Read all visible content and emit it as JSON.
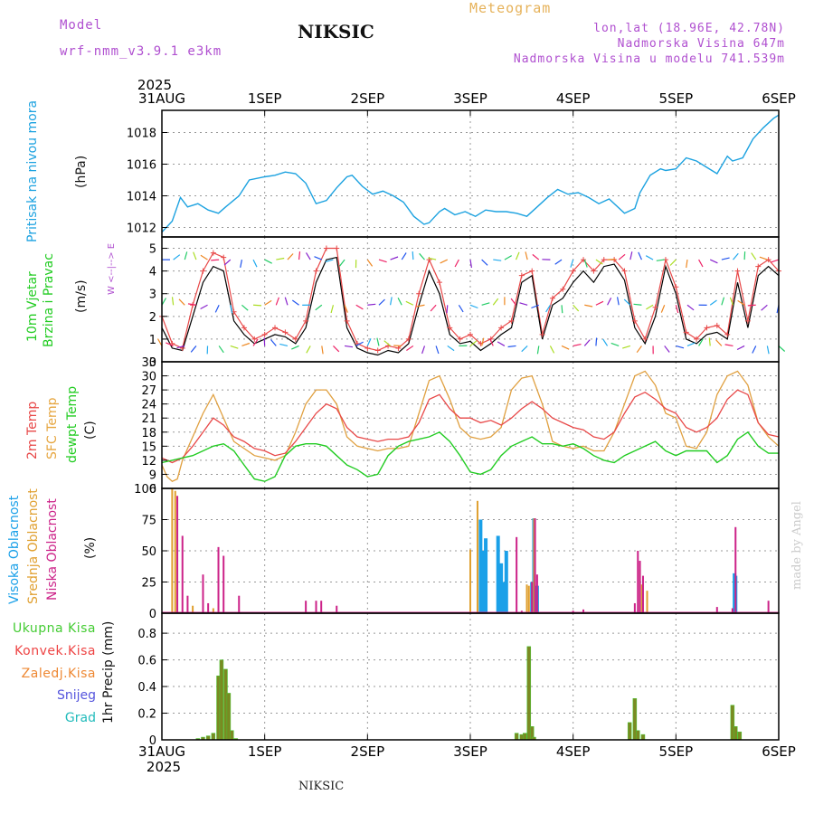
{
  "header": {
    "model_label": "Model",
    "model_value": "wrf-nmm_v3.9.1  e3km",
    "title": "Meteogram",
    "location": "NIKSIC",
    "coords": "lon,lat (18.96E, 42.78N)",
    "altitude": "Nadmorska Visina 647m",
    "model_altitude": "Nadmorska Visina u modelu 741.539m"
  },
  "footer": {
    "location": "NIKSIC",
    "credit": "made by Angel"
  },
  "colors": {
    "pressure": "#1ca2e0",
    "wind": "#22b24c",
    "t2m": "#e84848",
    "tsfc": "#e0a040",
    "dewpt": "#22cc22",
    "cloud_high": "#1aa0e8",
    "cloud_mid": "#e0a030",
    "cloud_low": "#cc2288",
    "precip_total": "#44cc33",
    "precip_conv": "#ee4444",
    "precip_frz": "#ee8833",
    "precip_snow": "#5555dd",
    "precip_hail": "#22bbbb",
    "model_color": "#b050d0"
  },
  "chart_data": [
    {
      "type": "line",
      "title": "Pritisak na nivou mora",
      "ylabel": "(hPa)",
      "x_tick_labels": [
        "31AUG",
        "1SEP",
        "2SEP",
        "3SEP",
        "4SEP",
        "5SEP",
        "6SEP"
      ],
      "year_label": "2025",
      "x_range_days": [
        0,
        6
      ],
      "ylim": [
        1011.4,
        1019.4
      ],
      "yticks": [
        1012,
        1014,
        1016,
        1018
      ],
      "series": [
        {
          "name": "MSLP",
          "x": [
            0,
            0.1,
            0.18,
            0.25,
            0.35,
            0.45,
            0.55,
            0.62,
            0.75,
            0.85,
            1.0,
            1.1,
            1.2,
            1.3,
            1.4,
            1.5,
            1.6,
            1.7,
            1.8,
            1.85,
            1.95,
            2.05,
            2.15,
            2.25,
            2.35,
            2.45,
            2.55,
            2.6,
            2.7,
            2.75,
            2.85,
            2.95,
            3.05,
            3.15,
            3.25,
            3.35,
            3.45,
            3.55,
            3.65,
            3.75,
            3.85,
            3.95,
            4.05,
            4.15,
            4.25,
            4.35,
            4.5,
            4.6,
            4.65,
            4.75,
            4.85,
            4.9,
            5.0,
            5.1,
            5.2,
            5.3,
            5.4,
            5.5,
            5.55,
            5.65,
            5.75,
            5.85,
            5.95,
            6.0
          ],
          "values": [
            1011.7,
            1012.4,
            1013.9,
            1013.3,
            1013.5,
            1013.1,
            1012.9,
            1013.3,
            1014.0,
            1015.0,
            1015.2,
            1015.3,
            1015.5,
            1015.4,
            1014.8,
            1013.5,
            1013.7,
            1014.5,
            1015.2,
            1015.3,
            1014.6,
            1014.1,
            1014.3,
            1014.0,
            1013.6,
            1012.7,
            1012.2,
            1012.3,
            1013.0,
            1013.2,
            1012.8,
            1013.0,
            1012.7,
            1013.1,
            1013.0,
            1013.0,
            1012.9,
            1012.7,
            1013.3,
            1013.9,
            1014.4,
            1014.1,
            1014.2,
            1013.9,
            1013.5,
            1013.8,
            1012.9,
            1013.2,
            1014.2,
            1015.3,
            1015.7,
            1015.6,
            1015.7,
            1016.4,
            1016.2,
            1015.8,
            1015.4,
            1016.5,
            1016.2,
            1016.4,
            1017.6,
            1018.3,
            1018.9,
            1019.1
          ]
        }
      ]
    },
    {
      "type": "line",
      "title": "10m Vjetar",
      "subtitle": "Brzina i Pravac",
      "ylabel": "(m/s)",
      "compass_label": "W <--|--> E",
      "ylim": [
        0,
        5.5
      ],
      "yticks": [
        0,
        1,
        2,
        3,
        4,
        5
      ],
      "series": [
        {
          "name": "mean speed",
          "x": [
            0,
            0.1,
            0.2,
            0.3,
            0.4,
            0.5,
            0.6,
            0.7,
            0.8,
            0.9,
            1.0,
            1.1,
            1.2,
            1.3,
            1.4,
            1.5,
            1.6,
            1.7,
            1.8,
            1.9,
            2.0,
            2.1,
            2.2,
            2.3,
            2.4,
            2.5,
            2.6,
            2.7,
            2.8,
            2.9,
            3.0,
            3.1,
            3.2,
            3.3,
            3.4,
            3.5,
            3.6,
            3.7,
            3.8,
            3.9,
            4.0,
            4.1,
            4.2,
            4.3,
            4.4,
            4.5,
            4.6,
            4.7,
            4.8,
            4.9,
            5.0,
            5.1,
            5.2,
            5.3,
            5.4,
            5.5,
            5.6,
            5.7,
            5.8,
            5.9,
            6.0
          ],
          "values": [
            1.5,
            0.6,
            0.5,
            2.0,
            3.5,
            4.2,
            4.0,
            1.8,
            1.2,
            0.8,
            1.0,
            1.2,
            1.1,
            0.8,
            1.5,
            3.5,
            4.5,
            4.6,
            1.5,
            0.6,
            0.4,
            0.3,
            0.5,
            0.4,
            0.8,
            2.5,
            4.0,
            3.0,
            1.2,
            0.8,
            0.9,
            0.5,
            0.8,
            1.2,
            1.5,
            3.5,
            3.8,
            1.0,
            2.5,
            2.8,
            3.5,
            4.0,
            3.5,
            4.2,
            4.3,
            3.6,
            1.5,
            0.8,
            2.0,
            4.2,
            3.0,
            1.0,
            0.8,
            1.2,
            1.3,
            1.0,
            3.5,
            1.5,
            3.8,
            4.2,
            3.8
          ]
        },
        {
          "name": "gust",
          "x": [
            0,
            0.1,
            0.2,
            0.3,
            0.4,
            0.5,
            0.6,
            0.7,
            0.8,
            0.9,
            1.0,
            1.1,
            1.2,
            1.3,
            1.4,
            1.5,
            1.6,
            1.7,
            1.8,
            1.9,
            2.0,
            2.1,
            2.2,
            2.3,
            2.4,
            2.5,
            2.6,
            2.7,
            2.8,
            2.9,
            3.0,
            3.1,
            3.2,
            3.3,
            3.4,
            3.5,
            3.6,
            3.7,
            3.8,
            3.9,
            4.0,
            4.1,
            4.2,
            4.3,
            4.4,
            4.5,
            4.6,
            4.7,
            4.8,
            4.9,
            5.0,
            5.1,
            5.2,
            5.3,
            5.4,
            5.5,
            5.6,
            5.7,
            5.8,
            5.9,
            6.0
          ],
          "values": [
            2.0,
            0.8,
            0.6,
            2.5,
            4.0,
            4.8,
            4.6,
            2.2,
            1.5,
            1.0,
            1.2,
            1.5,
            1.3,
            1.0,
            1.8,
            4.0,
            5.0,
            5.0,
            1.8,
            0.8,
            0.6,
            0.5,
            0.7,
            0.6,
            1.0,
            3.0,
            4.5,
            3.5,
            1.5,
            1.0,
            1.2,
            0.8,
            1.0,
            1.5,
            1.8,
            3.8,
            4.0,
            1.2,
            2.8,
            3.2,
            4.0,
            4.5,
            4.0,
            4.5,
            4.5,
            4.0,
            1.8,
            1.0,
            2.4,
            4.5,
            3.3,
            1.3,
            1.0,
            1.5,
            1.6,
            1.2,
            4.0,
            1.8,
            4.2,
            4.5,
            4.0
          ]
        }
      ]
    },
    {
      "type": "line",
      "title": "2m Temp",
      "subtitle": [
        "SFC Temp",
        "dewpt Temp"
      ],
      "ylabel": "(C)",
      "ylim": [
        6,
        33
      ],
      "yticks": [
        6,
        9,
        12,
        15,
        18,
        21,
        24,
        27,
        30,
        33
      ],
      "series": [
        {
          "name": "2m Temp",
          "x": [
            0,
            0.1,
            0.2,
            0.3,
            0.4,
            0.5,
            0.6,
            0.7,
            0.8,
            0.9,
            1.0,
            1.1,
            1.2,
            1.3,
            1.4,
            1.5,
            1.6,
            1.7,
            1.8,
            1.9,
            2.0,
            2.1,
            2.2,
            2.3,
            2.4,
            2.5,
            2.6,
            2.7,
            2.8,
            2.9,
            3.0,
            3.1,
            3.2,
            3.3,
            3.4,
            3.5,
            3.6,
            3.7,
            3.8,
            3.9,
            4.0,
            4.1,
            4.2,
            4.3,
            4.4,
            4.5,
            4.6,
            4.7,
            4.8,
            4.9,
            5.0,
            5.1,
            5.2,
            5.3,
            5.4,
            5.5,
            5.6,
            5.7,
            5.8,
            5.9,
            6.0
          ],
          "values": [
            12.5,
            11.5,
            12.5,
            15,
            18,
            21,
            19.5,
            17,
            16,
            14.5,
            14,
            13,
            13.5,
            16,
            19,
            22,
            24,
            23,
            19,
            17,
            16.5,
            16,
            16.5,
            16.5,
            17,
            20,
            25,
            26,
            23,
            21,
            21,
            20,
            20.5,
            19.5,
            21,
            23,
            24.5,
            23,
            21,
            20,
            19,
            18.5,
            17,
            16.5,
            18,
            22,
            25.5,
            26.5,
            25,
            23,
            22,
            19,
            18,
            19,
            21,
            25,
            27,
            26,
            20,
            17.5,
            17
          ]
        },
        {
          "name": "SFC Temp",
          "x": [
            0,
            0.05,
            0.1,
            0.15,
            0.2,
            0.3,
            0.4,
            0.5,
            0.6,
            0.7,
            0.8,
            0.9,
            1.0,
            1.1,
            1.2,
            1.3,
            1.4,
            1.5,
            1.6,
            1.7,
            1.8,
            1.9,
            2.0,
            2.1,
            2.2,
            2.3,
            2.4,
            2.5,
            2.6,
            2.7,
            2.8,
            2.9,
            3.0,
            3.1,
            3.2,
            3.3,
            3.4,
            3.5,
            3.6,
            3.7,
            3.8,
            3.9,
            4.0,
            4.1,
            4.2,
            4.3,
            4.4,
            4.5,
            4.6,
            4.7,
            4.8,
            4.9,
            5.0,
            5.1,
            5.2,
            5.3,
            5.4,
            5.5,
            5.6,
            5.7,
            5.8,
            5.9,
            6.0
          ],
          "values": [
            11,
            8.5,
            7.5,
            8,
            12,
            17,
            22,
            26,
            21,
            16,
            14.5,
            13,
            12.5,
            12,
            13,
            18,
            24,
            27,
            27,
            24,
            17,
            15,
            14.5,
            14,
            14.5,
            14.5,
            15,
            22,
            29,
            30,
            25,
            19,
            17,
            16.5,
            17,
            19,
            27,
            29.5,
            30,
            24,
            16,
            15,
            14.5,
            15,
            14,
            14,
            18,
            24,
            30,
            31,
            28,
            22,
            21,
            15,
            14.5,
            18,
            26,
            30,
            31,
            28,
            20,
            17,
            15
          ]
        },
        {
          "name": "dewpt Temp",
          "x": [
            0,
            0.1,
            0.2,
            0.3,
            0.4,
            0.5,
            0.6,
            0.7,
            0.8,
            0.9,
            1.0,
            1.1,
            1.2,
            1.3,
            1.4,
            1.5,
            1.6,
            1.7,
            1.8,
            1.9,
            2.0,
            2.1,
            2.2,
            2.3,
            2.4,
            2.5,
            2.6,
            2.7,
            2.8,
            2.9,
            3.0,
            3.1,
            3.2,
            3.3,
            3.4,
            3.5,
            3.6,
            3.7,
            3.8,
            3.9,
            4.0,
            4.1,
            4.2,
            4.3,
            4.4,
            4.5,
            4.6,
            4.7,
            4.8,
            4.9,
            5.0,
            5.1,
            5.2,
            5.3,
            5.4,
            5.5,
            5.6,
            5.7,
            5.8,
            5.9,
            6.0
          ],
          "values": [
            11.5,
            12,
            12.5,
            13,
            14,
            15,
            15.5,
            14,
            11,
            8,
            7.5,
            8.5,
            13,
            15,
            15.5,
            15.5,
            15,
            13,
            11,
            10,
            8.5,
            9,
            13,
            15,
            16,
            16.5,
            17,
            18,
            16,
            13,
            9.5,
            9,
            10,
            13,
            15,
            16,
            17,
            15.5,
            15.5,
            15,
            15.5,
            14.5,
            13,
            12,
            11.5,
            13,
            14,
            15,
            16,
            14,
            13,
            14,
            14,
            14,
            11.5,
            13,
            16.5,
            18,
            15,
            13.5,
            13.5
          ]
        }
      ]
    },
    {
      "type": "bar",
      "title": [
        "Visoka Oblacnost",
        "Srednja Oblacnost",
        "Niska Oblacnost"
      ],
      "ylabel": "(%)",
      "ylim": [
        0,
        100
      ],
      "yticks": [
        0,
        25,
        50,
        75,
        100
      ],
      "series": [
        {
          "name": "Visoka Oblacnost",
          "x": [
            3.1,
            3.12,
            3.15,
            3.27,
            3.3,
            3.33,
            3.35,
            3.6,
            3.62,
            3.65,
            5.57,
            5.58
          ],
          "values": [
            75,
            50,
            60,
            62,
            40,
            25,
            50,
            25,
            76,
            22,
            32,
            30
          ]
        },
        {
          "name": "Srednja Oblacnost",
          "x": [
            0.1,
            0.13,
            0.3,
            0.5,
            3.0,
            3.07,
            3.55,
            3.57,
            3.62,
            4.65,
            4.67,
            4.72
          ],
          "values": [
            100,
            98,
            6,
            4,
            51,
            90,
            23,
            22,
            76,
            35,
            23,
            18
          ]
        },
        {
          "name": "Niska Oblacnost",
          "x": [
            0.15,
            0.2,
            0.25,
            0.4,
            0.45,
            0.55,
            0.6,
            0.75,
            1.4,
            1.5,
            1.55,
            1.7,
            3.45,
            3.5,
            3.6,
            3.63,
            3.65,
            4.0,
            4.1,
            4.6,
            4.63,
            4.65,
            4.68,
            5.4,
            5.55,
            5.58,
            5.9
          ],
          "values": [
            94,
            62,
            14,
            31,
            8,
            53,
            46,
            14,
            10,
            10,
            10,
            6,
            61,
            2,
            25,
            76,
            31,
            2,
            3,
            8,
            50,
            42,
            30,
            5,
            4,
            69,
            10
          ]
        }
      ]
    },
    {
      "type": "bar",
      "title": [
        "Ukupna Kisa",
        "Konvek.Kisa",
        "Zaledj.Kisa",
        "Snijeg",
        "Grad"
      ],
      "ylabel": "1hr Precip (mm)",
      "ylim": [
        0,
        0.95
      ],
      "yticks": [
        0,
        0.2,
        0.4,
        0.6,
        0.8
      ],
      "series": [
        {
          "name": "Ukupna Kisa",
          "x": [
            0.35,
            0.4,
            0.45,
            0.5,
            0.55,
            0.58,
            0.62,
            0.65,
            0.68,
            0.72,
            3.45,
            3.5,
            3.53,
            3.57,
            3.6,
            3.62,
            4.55,
            4.6,
            4.63,
            4.68,
            5.55,
            5.58,
            5.62
          ],
          "values": [
            0.01,
            0.02,
            0.03,
            0.05,
            0.48,
            0.6,
            0.53,
            0.35,
            0.07,
            0.01,
            0.05,
            0.04,
            0.05,
            0.7,
            0.1,
            0.02,
            0.13,
            0.31,
            0.07,
            0.04,
            0.26,
            0.1,
            0.06
          ]
        }
      ]
    }
  ]
}
